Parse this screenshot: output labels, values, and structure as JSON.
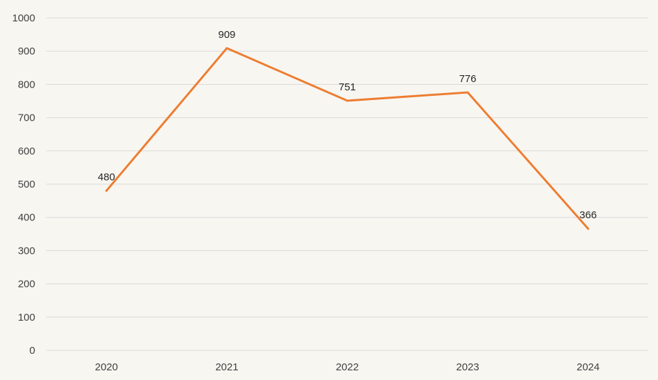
{
  "chart_data": {
    "type": "line",
    "categories": [
      "2020",
      "2021",
      "2022",
      "2023",
      "2024"
    ],
    "series": [
      {
        "values": [
          480,
          909,
          751,
          776,
          366
        ],
        "color": "#ed7d31"
      }
    ],
    "data_labels": [
      "480",
      "909",
      "751",
      "776",
      "366"
    ],
    "y_ticks": [
      "0",
      "100",
      "200",
      "300",
      "400",
      "500",
      "600",
      "700",
      "800",
      "900",
      "1000"
    ],
    "ylim": [
      0,
      1000
    ],
    "grid": true,
    "legend": "none",
    "title": "",
    "xlabel": "",
    "ylabel": ""
  },
  "colors": {
    "background": "#f8f6f1",
    "gridline": "#d9d9d9",
    "line": "#ed7d31",
    "text": "#404040"
  }
}
